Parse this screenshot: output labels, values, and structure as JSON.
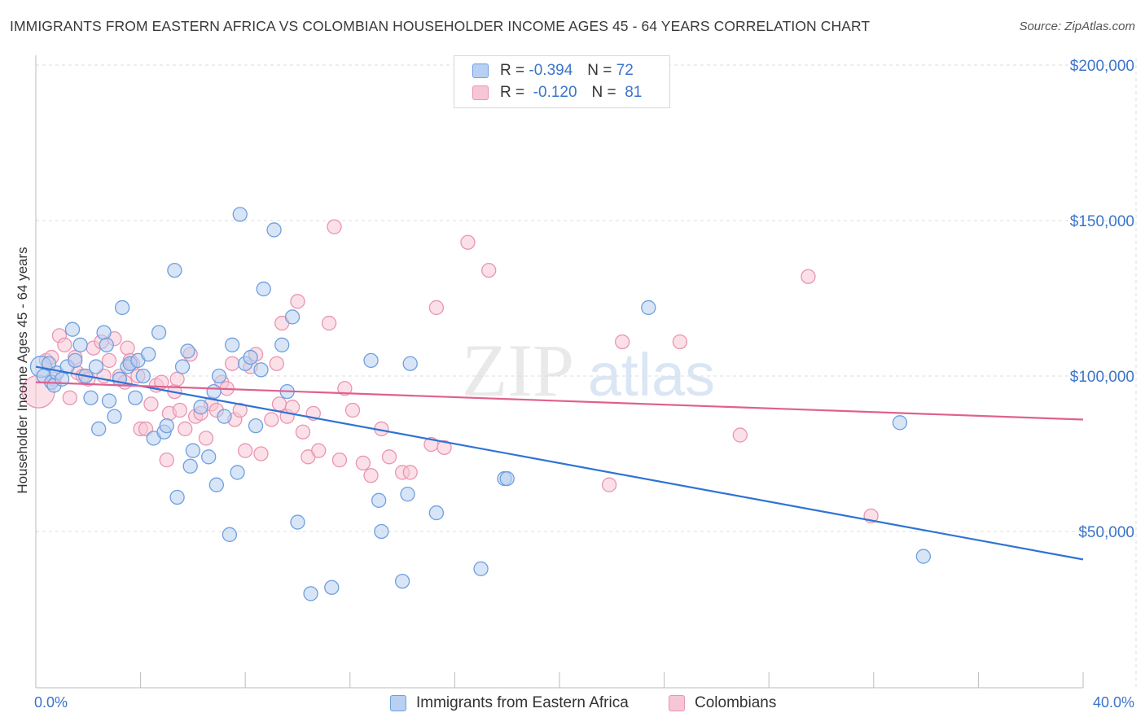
{
  "title": "IMMIGRANTS FROM EASTERN AFRICA VS COLOMBIAN HOUSEHOLDER INCOME AGES 45 - 64 YEARS CORRELATION CHART",
  "source": "Source: ZipAtlas.com",
  "watermark": {
    "zip": "ZIP",
    "atlas": "atlas"
  },
  "legend_top": {
    "rows": [
      {
        "r_label": "R =",
        "r_value": "-0.394",
        "n_label": "N =",
        "n_value": "72"
      },
      {
        "r_label": "R =",
        "r_value": "-0.120",
        "n_label": "N =",
        "n_value": "81"
      }
    ]
  },
  "colors": {
    "blue_fill": "#b8d0f1",
    "blue_stroke": "#6e9fdf",
    "blue_line": "#2f73d4",
    "pink_fill": "#f7c6d6",
    "pink_stroke": "#e995b1",
    "pink_line": "#e0608f",
    "axis_label": "#3a74c9",
    "grid": "#dcdcdc"
  },
  "chart_data": {
    "type": "scatter",
    "title": "IMMIGRANTS FROM EASTERN AFRICA VS COLOMBIAN HOUSEHOLDER INCOME AGES 45 - 64 YEARS CORRELATION CHART",
    "xlabel_min": "0.0%",
    "xlabel_max": "40.0%",
    "ylabel": "Householder Income Ages 45 - 64 years",
    "xlim": [
      0,
      40
    ],
    "ylim": [
      5000,
      210000
    ],
    "yticks": [
      50000,
      100000,
      150000,
      200000
    ],
    "ytick_labels": [
      "$50,000",
      "$100,000",
      "$150,000",
      "$200,000"
    ],
    "series": [
      {
        "name": "Immigrants from Eastern Africa",
        "color": "blue",
        "R": -0.394,
        "N": 72,
        "trend": {
          "x": [
            0,
            40
          ],
          "y": [
            103000,
            41000
          ]
        },
        "points": [
          [
            0.2,
            103000
          ],
          [
            0.3,
            100000
          ],
          [
            0.5,
            104000
          ],
          [
            0.6,
            98000
          ],
          [
            0.7,
            97000
          ],
          [
            0.8,
            101000
          ],
          [
            1.0,
            99000
          ],
          [
            1.2,
            103000
          ],
          [
            1.4,
            115000
          ],
          [
            1.5,
            105000
          ],
          [
            1.7,
            110000
          ],
          [
            1.9,
            100000
          ],
          [
            2.1,
            93000
          ],
          [
            2.3,
            103000
          ],
          [
            2.4,
            83000
          ],
          [
            2.6,
            114000
          ],
          [
            2.7,
            110000
          ],
          [
            2.8,
            92000
          ],
          [
            3.0,
            87000
          ],
          [
            3.2,
            99000
          ],
          [
            3.3,
            122000
          ],
          [
            3.5,
            103000
          ],
          [
            3.6,
            104000
          ],
          [
            3.8,
            93000
          ],
          [
            3.9,
            105000
          ],
          [
            4.1,
            100000
          ],
          [
            4.3,
            107000
          ],
          [
            4.5,
            80000
          ],
          [
            4.7,
            114000
          ],
          [
            4.9,
            82000
          ],
          [
            5.0,
            84000
          ],
          [
            5.3,
            134000
          ],
          [
            5.4,
            61000
          ],
          [
            5.6,
            103000
          ],
          [
            5.8,
            108000
          ],
          [
            5.9,
            71000
          ],
          [
            6.0,
            76000
          ],
          [
            6.3,
            90000
          ],
          [
            6.6,
            74000
          ],
          [
            6.8,
            95000
          ],
          [
            6.9,
            65000
          ],
          [
            7.0,
            100000
          ],
          [
            7.2,
            87000
          ],
          [
            7.4,
            49000
          ],
          [
            7.5,
            110000
          ],
          [
            7.7,
            69000
          ],
          [
            7.8,
            152000
          ],
          [
            8.0,
            104000
          ],
          [
            8.2,
            106000
          ],
          [
            8.4,
            84000
          ],
          [
            8.6,
            102000
          ],
          [
            8.7,
            128000
          ],
          [
            9.1,
            147000
          ],
          [
            9.4,
            110000
          ],
          [
            9.6,
            95000
          ],
          [
            9.8,
            119000
          ],
          [
            10.0,
            53000
          ],
          [
            10.5,
            30000
          ],
          [
            11.3,
            32000
          ],
          [
            12.8,
            105000
          ],
          [
            13.1,
            60000
          ],
          [
            13.2,
            50000
          ],
          [
            14.0,
            34000
          ],
          [
            14.2,
            62000
          ],
          [
            14.3,
            104000
          ],
          [
            15.3,
            56000
          ],
          [
            17.0,
            38000
          ],
          [
            17.9,
            67000
          ],
          [
            18.0,
            67000
          ],
          [
            23.4,
            122000
          ],
          [
            33.0,
            85000
          ],
          [
            33.9,
            42000
          ]
        ]
      },
      {
        "name": "Colombians",
        "color": "pink",
        "R": -0.12,
        "N": 81,
        "trend": {
          "x": [
            0,
            40
          ],
          "y": [
            98000,
            86000
          ]
        },
        "points": [
          [
            0.1,
            95000
          ],
          [
            0.4,
            105000
          ],
          [
            0.6,
            106000
          ],
          [
            0.7,
            99000
          ],
          [
            0.9,
            113000
          ],
          [
            1.1,
            110000
          ],
          [
            1.3,
            93000
          ],
          [
            1.5,
            106000
          ],
          [
            1.6,
            101000
          ],
          [
            1.8,
            100000
          ],
          [
            2.0,
            99000
          ],
          [
            2.2,
            109000
          ],
          [
            2.5,
            111000
          ],
          [
            2.6,
            100000
          ],
          [
            2.8,
            105000
          ],
          [
            3.0,
            112000
          ],
          [
            3.2,
            100000
          ],
          [
            3.4,
            98000
          ],
          [
            3.5,
            109000
          ],
          [
            3.6,
            105000
          ],
          [
            3.7,
            104000
          ],
          [
            3.9,
            100000
          ],
          [
            4.0,
            83000
          ],
          [
            4.2,
            83000
          ],
          [
            4.4,
            91000
          ],
          [
            4.6,
            97000
          ],
          [
            4.8,
            98000
          ],
          [
            5.0,
            73000
          ],
          [
            5.1,
            88000
          ],
          [
            5.3,
            95000
          ],
          [
            5.4,
            99000
          ],
          [
            5.5,
            89000
          ],
          [
            5.7,
            83000
          ],
          [
            5.9,
            107000
          ],
          [
            6.1,
            87000
          ],
          [
            6.3,
            88000
          ],
          [
            6.5,
            80000
          ],
          [
            6.7,
            91000
          ],
          [
            6.9,
            89000
          ],
          [
            7.1,
            98000
          ],
          [
            7.3,
            96000
          ],
          [
            7.5,
            104000
          ],
          [
            7.6,
            86000
          ],
          [
            7.8,
            89000
          ],
          [
            8.0,
            76000
          ],
          [
            8.2,
            103000
          ],
          [
            8.4,
            107000
          ],
          [
            8.6,
            75000
          ],
          [
            9.0,
            86000
          ],
          [
            9.2,
            104000
          ],
          [
            9.3,
            91000
          ],
          [
            9.4,
            117000
          ],
          [
            9.6,
            87000
          ],
          [
            9.8,
            90000
          ],
          [
            10.0,
            124000
          ],
          [
            10.2,
            82000
          ],
          [
            10.4,
            74000
          ],
          [
            10.6,
            88000
          ],
          [
            10.8,
            76000
          ],
          [
            11.2,
            117000
          ],
          [
            11.4,
            148000
          ],
          [
            11.6,
            73000
          ],
          [
            11.8,
            96000
          ],
          [
            12.1,
            89000
          ],
          [
            12.5,
            72000
          ],
          [
            12.8,
            68000
          ],
          [
            13.2,
            83000
          ],
          [
            13.5,
            74000
          ],
          [
            14.0,
            69000
          ],
          [
            14.3,
            69000
          ],
          [
            15.1,
            78000
          ],
          [
            15.3,
            122000
          ],
          [
            15.6,
            77000
          ],
          [
            16.5,
            143000
          ],
          [
            17.3,
            134000
          ],
          [
            21.9,
            65000
          ],
          [
            22.4,
            111000
          ],
          [
            24.6,
            111000
          ],
          [
            26.9,
            81000
          ],
          [
            29.5,
            132000
          ],
          [
            31.9,
            55000
          ]
        ]
      }
    ]
  },
  "legend_bottom": [
    "Immigrants from Eastern Africa",
    "Colombians"
  ]
}
